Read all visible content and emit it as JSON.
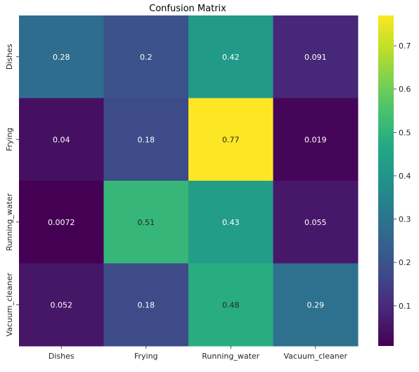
{
  "chart_data": {
    "type": "heatmap",
    "title": "Confusion Matrix",
    "xlabel": "",
    "ylabel": "",
    "x_categories": [
      "Dishes",
      "Frying",
      "Running_water",
      "Vacuum_cleaner"
    ],
    "y_categories": [
      "Dishes",
      "Frying",
      "Running_water",
      "Vacuum_cleaner"
    ],
    "values": [
      [
        0.28,
        0.2,
        0.42,
        0.091
      ],
      [
        0.04,
        0.18,
        0.77,
        0.019
      ],
      [
        0.0072,
        0.51,
        0.43,
        0.055
      ],
      [
        0.052,
        0.18,
        0.48,
        0.29
      ]
    ],
    "cell_labels": [
      [
        "0.28",
        "0.2",
        "0.42",
        "0.091"
      ],
      [
        "0.04",
        "0.18",
        "0.77",
        "0.019"
      ],
      [
        "0.0072",
        "0.51",
        "0.43",
        "0.055"
      ],
      [
        "0.052",
        "0.18",
        "0.48",
        "0.29"
      ]
    ],
    "colormap": "viridis",
    "colorbar": {
      "vmin": 0.0072,
      "vmax": 0.77,
      "ticks": [
        0.1,
        0.2,
        0.3,
        0.4,
        0.5,
        0.6,
        0.7
      ],
      "tick_labels": [
        "0.1",
        "0.2",
        "0.3",
        "0.4",
        "0.5",
        "0.6",
        "0.7"
      ]
    },
    "colors": {
      "annotation_light": "#ffffff",
      "annotation_dark": "#262626",
      "axis_text": "#262626"
    }
  }
}
